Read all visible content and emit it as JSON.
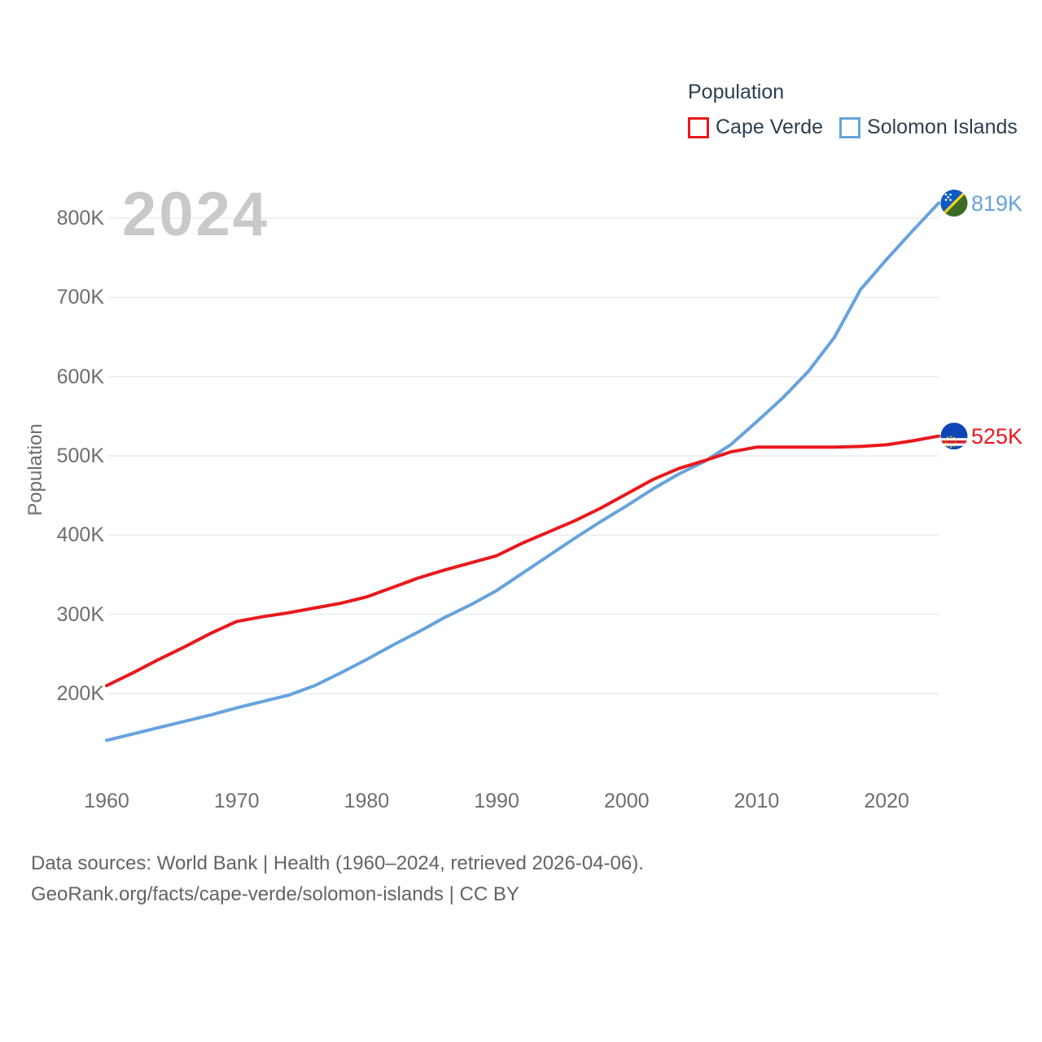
{
  "watermark": {
    "year": "2024"
  },
  "legend": {
    "title": "Population",
    "items": [
      {
        "label": "Cape Verde",
        "color": "#e8191c"
      },
      {
        "label": "Solomon Islands",
        "color": "#66a3dd"
      }
    ]
  },
  "y_axis": {
    "title": "Population"
  },
  "end_labels": [
    {
      "series": "Solomon Islands",
      "label": "819K",
      "color": "#66a3dd",
      "icon": "solomon-islands-flag-icon"
    },
    {
      "series": "Cape Verde",
      "label": "525K",
      "color": "#e8191c",
      "icon": "cape-verde-flag-icon"
    }
  ],
  "footer": {
    "line1": "Data sources: World Bank | Health (1960–2024, retrieved 2026-04-06).",
    "line2": "GeoRank.org/facts/cape-verde/solomon-islands | CC BY"
  },
  "chart_data": {
    "type": "line",
    "title": "Population",
    "xlabel": "",
    "ylabel": "Population",
    "units": "thousands",
    "grid": "horizontal",
    "legend_position": "top-right",
    "x": [
      1960,
      1962,
      1964,
      1966,
      1968,
      1970,
      1972,
      1974,
      1976,
      1978,
      1980,
      1982,
      1984,
      1986,
      1988,
      1990,
      1992,
      1994,
      1996,
      1998,
      2000,
      2002,
      2004,
      2006,
      2008,
      2010,
      2012,
      2014,
      2016,
      2018,
      2020,
      2022,
      2024
    ],
    "series": [
      {
        "name": "Cape Verde",
        "color": "#e8191c",
        "values": [
          210,
          226,
          243,
          259,
          276,
          291,
          297,
          302,
          308,
          314,
          322,
          334,
          346,
          356,
          365,
          374,
          390,
          404,
          418,
          434,
          452,
          470,
          484,
          494,
          505,
          511,
          511,
          511,
          511,
          512,
          514,
          519,
          525
        ]
      },
      {
        "name": "Solomon Islands",
        "color": "#66a3dd",
        "values": [
          141,
          149,
          157,
          165,
          173,
          182,
          190,
          198,
          210,
          226,
          243,
          261,
          278,
          296,
          312,
          330,
          352,
          374,
          396,
          417,
          437,
          458,
          477,
          493,
          514,
          543,
          573,
          607,
          650,
          710,
          748,
          784,
          819
        ]
      }
    ],
    "xticks": [
      1960,
      1970,
      1980,
      1990,
      2000,
      2010,
      2020
    ],
    "yticks": [
      {
        "value": 200,
        "label": "200K"
      },
      {
        "value": 300,
        "label": "300K"
      },
      {
        "value": 400,
        "label": "400K"
      },
      {
        "value": 500,
        "label": "500K"
      },
      {
        "value": 600,
        "label": "600K"
      },
      {
        "value": 700,
        "label": "700K"
      },
      {
        "value": 800,
        "label": "800K"
      }
    ],
    "ylim": [
      130,
      860
    ],
    "xlim": [
      1960,
      2024
    ],
    "final_values": {
      "Cape Verde": 525,
      "Solomon Islands": 819
    }
  }
}
